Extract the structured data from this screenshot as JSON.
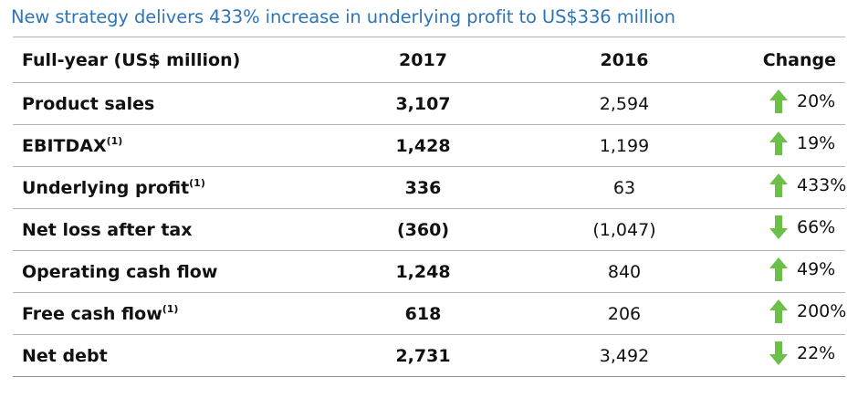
{
  "title": "New strategy delivers 433% increase in underlying profit to US$336 million",
  "colors": {
    "title": "#2e75b6",
    "arrow_green": "#6cc04a",
    "rule": "#b3b3b3"
  },
  "table": {
    "headers": {
      "label": "Full-year (US$ million)",
      "y2017": "2017",
      "y2016": "2016",
      "change": "Change"
    },
    "rows": [
      {
        "label": "Product sales",
        "sup": "",
        "y2017": "3,107",
        "y2016": "2,594",
        "direction": "up",
        "change": "20%"
      },
      {
        "label": "EBITDAX",
        "sup": "(1)",
        "y2017": "1,428",
        "y2016": "1,199",
        "direction": "up",
        "change": "19%"
      },
      {
        "label": "Underlying profit",
        "sup": "(1)",
        "y2017": "336",
        "y2016": "63",
        "direction": "up",
        "change": "433%"
      },
      {
        "label": "Net loss after tax",
        "sup": "",
        "y2017": "(360)",
        "y2016": "(1,047)",
        "direction": "down",
        "change": "66%"
      },
      {
        "label": "Operating cash flow",
        "sup": "",
        "y2017": "1,248",
        "y2016": "840",
        "direction": "up",
        "change": "49%"
      },
      {
        "label": "Free cash flow",
        "sup": "(1)",
        "y2017": "618",
        "y2016": "206",
        "direction": "up",
        "change": "200%"
      },
      {
        "label": "Net debt",
        "sup": "",
        "y2017": "2,731",
        "y2016": "3,492",
        "direction": "down",
        "change": "22%"
      }
    ]
  }
}
